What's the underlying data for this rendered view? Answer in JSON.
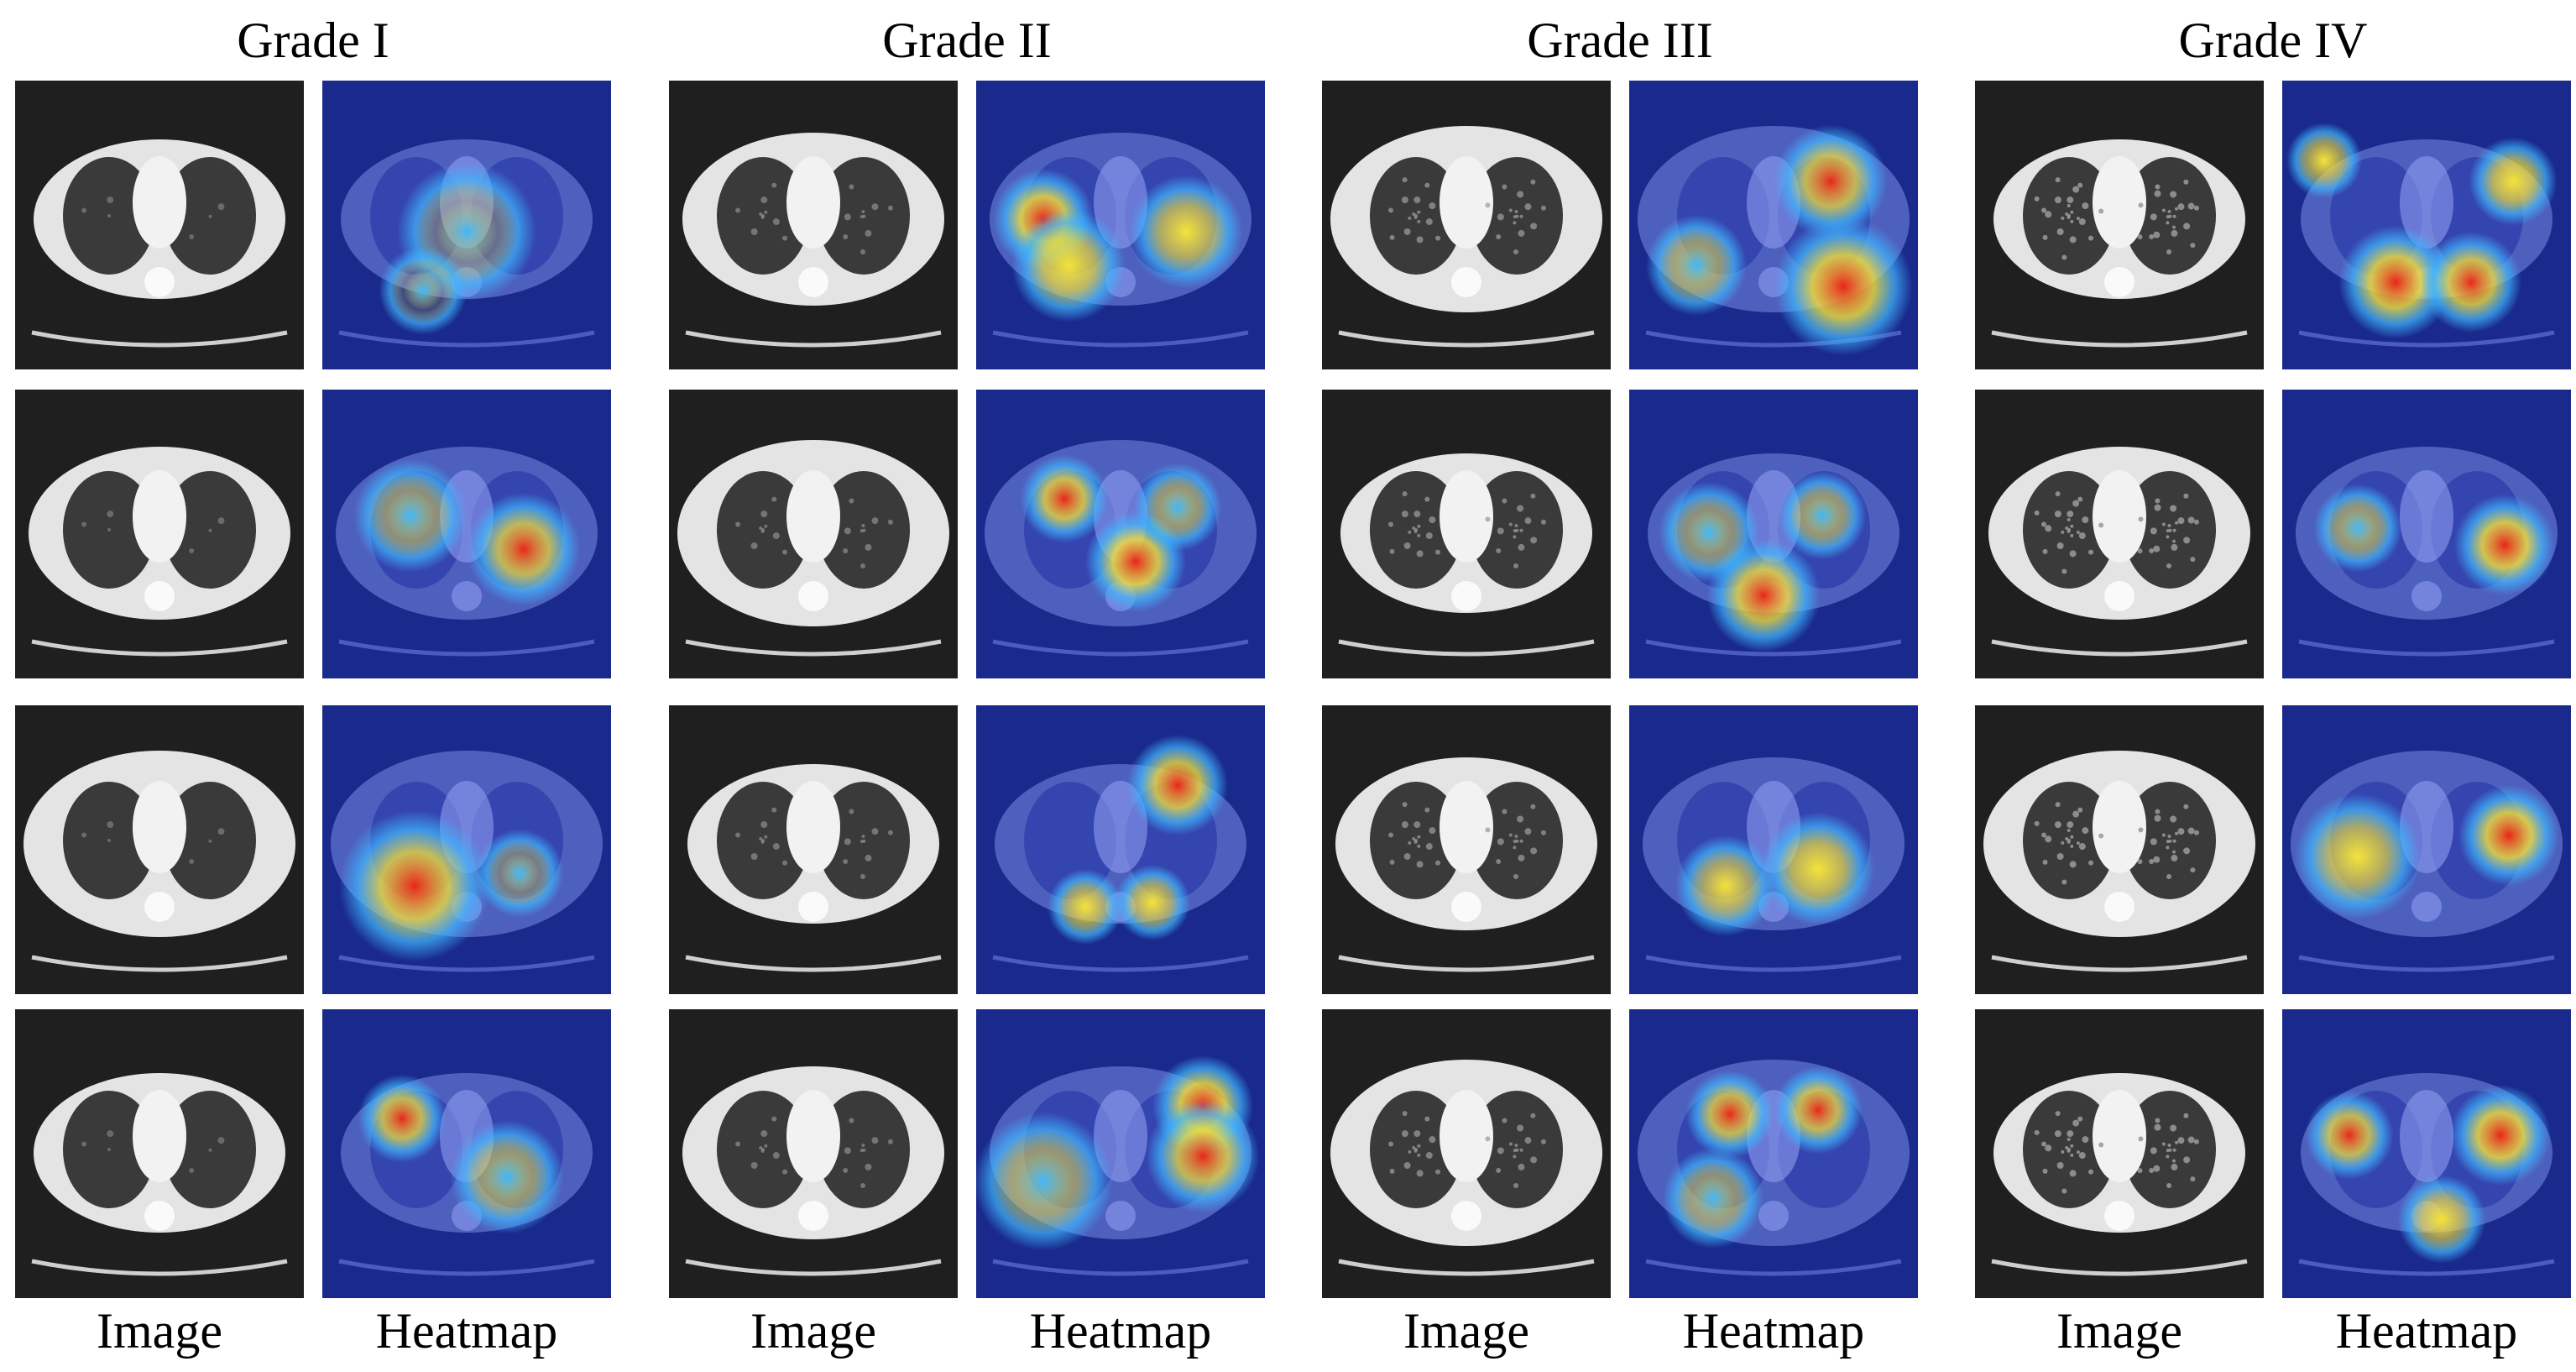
{
  "figure": {
    "grades": [
      {
        "title": "Grade I"
      },
      {
        "title": "Grade II"
      },
      {
        "title": "Grade III"
      },
      {
        "title": "Grade IV"
      }
    ],
    "column_labels": {
      "image": "Image",
      "heatmap": "Heatmap"
    },
    "rows_per_grade": 4,
    "colors": {
      "ct_background": "#1f1f1f",
      "ct_body": "#e4e4e4",
      "ct_lung": "#3a3a3a",
      "heatmap_base": "#1a2a8c",
      "heatmap_cool": "#3fb6ff",
      "heatmap_warm": "#f5e23a",
      "heatmap_hot": "#e8261c"
    }
  }
}
